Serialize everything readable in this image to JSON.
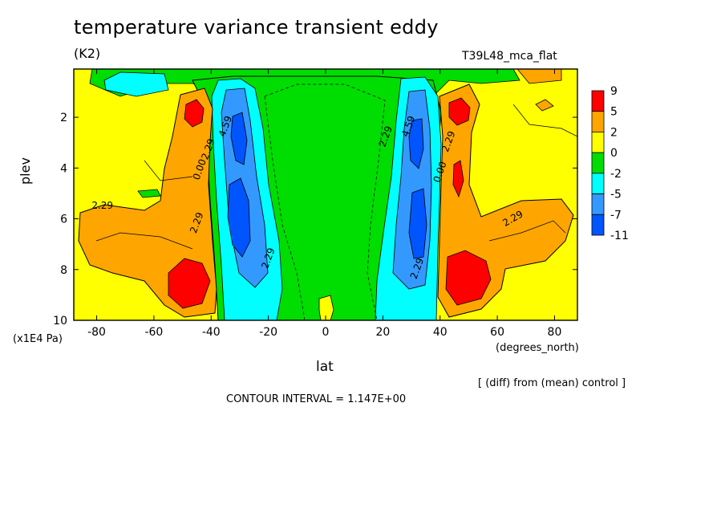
{
  "chart_data": {
    "type": "heatmap",
    "title": "temperature variance transient eddy",
    "units": "(K2)",
    "run_id": "T39L48_mca_flat",
    "xlabel": "lat",
    "x_units": "(degrees_north)",
    "ylabel": "plev",
    "y_units": "(x1E4 Pa)",
    "subtitle": "[ (diff) from (mean) control ]",
    "contour_interval": "CONTOUR INTERVAL = 1.147E+00",
    "xlim": [
      -88,
      88
    ],
    "ylim": [
      10,
      0.1
    ],
    "x_ticks": [
      -80,
      -60,
      -40,
      -20,
      0,
      20,
      40,
      60,
      80
    ],
    "x_tick_labels": [
      "-80",
      "-60",
      "-40",
      "-20",
      "0",
      "20",
      "40",
      "60",
      "80"
    ],
    "y_ticks": [
      2,
      4,
      6,
      8,
      10
    ],
    "y_tick_labels": [
      "2",
      "4",
      "6",
      "8",
      "10"
    ],
    "colorbar": {
      "labels": [
        "9",
        "5",
        "2",
        "0",
        "-2",
        "-5",
        "-7",
        "-11"
      ],
      "colors": [
        "#ff0000",
        "#ffa500",
        "#ffff00",
        "#00dd00",
        "#00ffff",
        "#3399ff",
        "#0055ff"
      ]
    },
    "contour_labels": [
      {
        "text": "2.29",
        "lat": -78,
        "plev": 5.6
      },
      {
        "text": "2.29",
        "lat": -44,
        "plev": 6.2
      },
      {
        "text": "0.00",
        "lat": -43,
        "plev": 4.1
      },
      {
        "text": "2.29",
        "lat": -40,
        "plev": 3.3
      },
      {
        "text": "4.59",
        "lat": -34,
        "plev": 2.4
      },
      {
        "text": "2.29",
        "lat": -19,
        "plev": 7.6
      },
      {
        "text": "2.29",
        "lat": 22,
        "plev": 2.8
      },
      {
        "text": "4.59",
        "lat": 30,
        "plev": 2.4
      },
      {
        "text": "0.00",
        "lat": 41,
        "plev": 4.2
      },
      {
        "text": "2.29",
        "lat": 44,
        "plev": 3.0
      },
      {
        "text": "2.29",
        "lat": 33,
        "plev": 8.0
      },
      {
        "text": "2.29",
        "lat": 66,
        "plev": 6.1
      }
    ]
  }
}
